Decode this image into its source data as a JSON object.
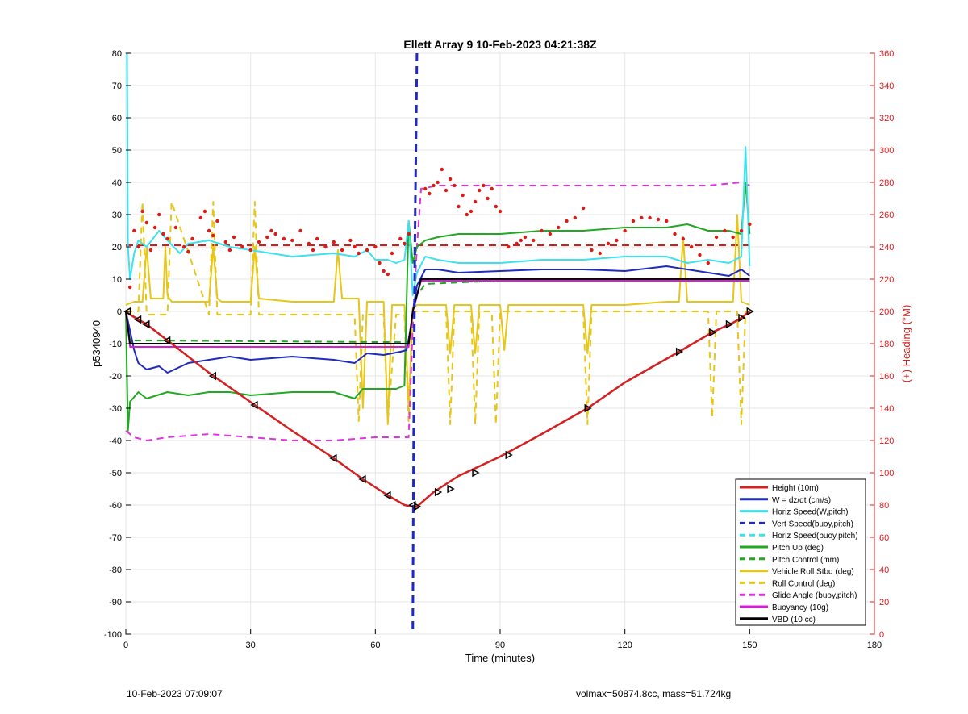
{
  "chart_data": {
    "type": "line",
    "title": "Ellett Array 9 10-Feb-2023 04:21:38Z",
    "xlabel": "Time (minutes)",
    "ylabel": "p5340940",
    "y2label": "(+) Heading (°M)",
    "xlim": [
      0,
      180
    ],
    "ylim": [
      -100,
      80
    ],
    "y2lim": [
      0,
      360
    ],
    "xticks": [
      0,
      30,
      60,
      90,
      120,
      150,
      180
    ],
    "yticks": [
      -100,
      -90,
      -80,
      -70,
      -60,
      -50,
      -40,
      -30,
      -20,
      -10,
      0,
      10,
      20,
      30,
      40,
      50,
      60,
      70,
      80
    ],
    "y2ticks": [
      0,
      20,
      40,
      60,
      80,
      100,
      120,
      140,
      160,
      180,
      200,
      220,
      240,
      260,
      280,
      300,
      320,
      340,
      360
    ],
    "grid": true,
    "legend_position": "bottom-right",
    "colors": {
      "height": "#d42020",
      "w": "#1f2bbd",
      "horiz": "#3ee2ee",
      "pitch": "#22a822",
      "roll": "#e6c619",
      "glide": "#e033e0",
      "buoyancy": "#d81dd8",
      "vbd": "#000000",
      "heading": "#dd1b14",
      "right_axis": "#d42020"
    },
    "series": [
      {
        "name": "Height (10m)",
        "style": "solid",
        "color": "#d42020",
        "x": [
          0,
          1,
          3,
          5,
          10,
          20,
          31,
          40,
          50,
          57,
          63,
          67,
          69,
          70,
          74,
          80,
          90,
          100,
          111,
          120,
          133,
          141,
          146,
          148,
          150
        ],
        "y": [
          0,
          -1,
          -2.5,
          -4,
          -9,
          -19,
          -29,
          -37,
          -45.5,
          -52,
          -57,
          -60,
          -60.5,
          -60.5,
          -56,
          -51,
          -45,
          -38,
          -30,
          -22,
          -12.5,
          -6.5,
          -3.5,
          -2,
          0
        ]
      },
      {
        "name": "W = dz/dt (cm/s)",
        "style": "solid",
        "color": "#1f2bbd",
        "x": [
          0,
          1,
          2,
          3,
          5,
          8,
          10,
          15,
          20,
          25,
          30,
          40,
          50,
          55,
          58,
          62,
          66,
          67.5,
          68.5,
          69,
          70,
          72,
          75,
          80,
          90,
          100,
          110,
          120,
          130,
          135,
          140,
          145,
          148,
          150
        ],
        "y": [
          0,
          -6,
          -12,
          -16,
          -18,
          -17,
          -19,
          -16,
          -15,
          -14,
          -15,
          -14,
          -15,
          -16,
          -13,
          -13.5,
          -12.5,
          -12,
          -5,
          0,
          8,
          13,
          13,
          12,
          12.5,
          13,
          13,
          12.5,
          14,
          13,
          12,
          11,
          13,
          11
        ]
      },
      {
        "name": "Horiz Speed(W,pitch)",
        "style": "solid",
        "color": "#3ee2ee",
        "x": [
          0.3,
          0.5,
          1,
          2,
          3,
          5,
          8,
          10,
          13,
          15,
          20,
          25,
          30,
          35,
          40,
          50,
          55,
          58,
          60,
          63,
          65,
          67,
          68,
          69,
          70,
          72,
          75,
          80,
          90,
          100,
          110,
          120,
          130,
          135,
          140,
          145,
          148,
          149,
          150
        ],
        "y": [
          80,
          20,
          10,
          18,
          22,
          20,
          25,
          22,
          18,
          21,
          22,
          20,
          19,
          18,
          17,
          18,
          17,
          19,
          16,
          16,
          15,
          16,
          28,
          5,
          12,
          17,
          16,
          15,
          15,
          16,
          16,
          17,
          17,
          15,
          16,
          15,
          17,
          51,
          14
        ]
      },
      {
        "name": "Vert Speed(buoy,pitch)",
        "style": "dashed",
        "color": "#1f2bbd",
        "x": [
          70,
          69.5,
          69.2,
          69
        ],
        "y": [
          80,
          20,
          -40,
          -100
        ]
      },
      {
        "name": "Horiz Speed(buoy,pitch)",
        "style": "dashed",
        "color": "#3ee2ee",
        "x": [],
        "y": []
      },
      {
        "name": "Pitch Up (deg)",
        "style": "solid",
        "color": "#22a822",
        "x": [
          0,
          0.5,
          1,
          3,
          5,
          10,
          15,
          20,
          25,
          30,
          40,
          50,
          55,
          57,
          60,
          65,
          67,
          68,
          69,
          70,
          72,
          75,
          80,
          90,
          100,
          110,
          120,
          130,
          135,
          140,
          145,
          148,
          149,
          150
        ],
        "y": [
          0,
          -37,
          -28,
          -25,
          -27,
          -25,
          -26,
          -25,
          -25,
          -26,
          -25,
          -25,
          -27,
          -24,
          -24,
          -24,
          -23,
          28,
          15,
          20,
          22,
          23,
          24,
          24,
          25,
          25,
          26,
          26,
          27,
          25,
          25,
          24,
          40,
          24
        ]
      },
      {
        "name": "Pitch Control (mm)",
        "style": "dashed",
        "color": "#22a822",
        "x": [
          0,
          1,
          5,
          60,
          68,
          69,
          70,
          72,
          90,
          150
        ],
        "y": [
          0,
          -9,
          -9,
          -9.5,
          -9.5,
          0,
          5,
          8.5,
          9.5,
          10
        ]
      },
      {
        "name": "Vehicle Roll Stbd (deg)",
        "style": "solid",
        "color": "#e6c619",
        "x": [
          0,
          2,
          4,
          5,
          6,
          9,
          9.5,
          10,
          11,
          20,
          21,
          22,
          23,
          30,
          31,
          32,
          40,
          50,
          51,
          52,
          56,
          57,
          58,
          62,
          63,
          64,
          67,
          68,
          69,
          70,
          75,
          77,
          78,
          79,
          83,
          84,
          85,
          90,
          91,
          92,
          100,
          110,
          111,
          112,
          120,
          130,
          133,
          134,
          135,
          146,
          147,
          148,
          150
        ],
        "y": [
          2,
          3,
          3,
          20,
          4,
          4,
          20,
          5,
          3,
          3,
          20,
          4,
          3,
          3,
          20,
          4,
          3,
          3,
          19,
          4,
          4,
          -30,
          3,
          3,
          -35,
          2,
          2,
          -30,
          1,
          2,
          2,
          2,
          -13,
          2,
          2,
          -13,
          2,
          2,
          -12,
          2,
          2,
          2,
          -13,
          2,
          2,
          3,
          3,
          23,
          3,
          3,
          30,
          3,
          2
        ]
      },
      {
        "name": "Roll Control (deg)",
        "style": "dashed",
        "color": "#e6c619",
        "x": [
          0,
          3,
          4,
          5,
          10,
          11,
          20,
          21,
          22,
          30,
          31,
          32,
          55,
          56,
          57,
          62,
          63,
          65,
          67,
          68,
          69,
          75,
          77,
          78,
          79,
          83,
          84,
          85,
          88,
          89,
          90,
          110,
          111,
          112,
          140,
          141,
          142,
          147,
          148,
          149,
          150
        ],
        "y": [
          0,
          0,
          34,
          -1,
          -1,
          34,
          -1,
          34,
          -1,
          -1,
          34,
          -1,
          -1,
          -34,
          -1,
          -1,
          -34,
          -1,
          -1,
          -34,
          0,
          0,
          0,
          -35,
          0,
          0,
          -35,
          0,
          0,
          -35,
          0,
          0,
          -35,
          0,
          0,
          -33,
          0,
          0,
          -35,
          0,
          0
        ]
      },
      {
        "name": "Glide Angle (buoy,pitch)",
        "style": "dashed",
        "color": "#e033e0",
        "x": [
          0,
          2,
          5,
          10,
          20,
          30,
          40,
          50,
          60,
          67,
          68,
          69,
          70,
          71,
          75,
          80,
          90,
          100,
          110,
          120,
          130,
          140,
          148,
          150
        ],
        "y": [
          -37,
          -39,
          -40,
          -39,
          -38,
          -39,
          -40,
          -40,
          -39,
          -39,
          -39,
          -5,
          20,
          38,
          39,
          39,
          39,
          39,
          39,
          39,
          39,
          39,
          40,
          39
        ]
      },
      {
        "name": "Buoyancy (10g)",
        "style": "solid",
        "color": "#d81dd8",
        "x": [
          0,
          1,
          68,
          69,
          71,
          150
        ],
        "y": [
          0,
          -11,
          -11,
          0,
          9.5,
          9.5
        ]
      },
      {
        "name": "VBD (10 cc)",
        "style": "solid",
        "color": "#000000",
        "x": [
          0,
          1,
          68,
          69,
          71,
          150
        ],
        "y": [
          0,
          -10,
          -10,
          0,
          10,
          10
        ]
      }
    ],
    "height_markers": {
      "x": [
        0.5,
        3,
        5,
        10,
        21,
        31,
        50,
        57,
        63,
        69,
        70,
        75,
        78,
        84,
        92,
        111,
        133,
        141,
        145,
        148,
        150
      ],
      "y": [
        0,
        -2.5,
        -4,
        -9,
        -20,
        -29,
        -45.5,
        -52,
        -57,
        -60,
        -60.5,
        -56,
        -55,
        -50,
        -44.5,
        -30,
        -12.5,
        -6.5,
        -4,
        -2,
        0
      ]
    },
    "heading_reference": {
      "heading": 241,
      "x_range": [
        0,
        150
      ]
    },
    "heading_points": {
      "x": [
        1,
        2,
        3,
        4,
        5,
        6,
        7,
        8,
        9,
        10,
        12,
        14,
        15,
        16,
        18,
        19,
        20,
        21,
        22,
        24,
        25,
        26,
        28,
        30,
        32,
        34,
        35,
        36,
        38,
        40,
        42,
        44,
        45,
        46,
        48,
        50,
        52,
        54,
        55,
        56,
        58,
        60,
        61,
        62,
        63,
        64,
        66,
        67,
        68,
        72,
        73,
        74,
        75,
        76,
        77,
        78,
        79,
        80,
        81,
        82,
        83,
        84,
        85,
        86,
        87,
        88,
        89,
        90,
        92,
        94,
        95,
        96,
        98,
        100,
        102,
        104,
        106,
        108,
        110,
        112,
        114,
        116,
        118,
        120,
        122,
        124,
        126,
        128,
        130,
        132,
        134,
        136,
        138,
        140,
        142,
        144,
        146,
        148,
        150
      ],
      "y": [
        215,
        250,
        240,
        262,
        255,
        238,
        252,
        260,
        248,
        245,
        252,
        240,
        237,
        245,
        258,
        262,
        250,
        247,
        256,
        243,
        238,
        246,
        240,
        238,
        243,
        246,
        250,
        248,
        245,
        244,
        250,
        242,
        238,
        245,
        240,
        243,
        238,
        244,
        240,
        236,
        238,
        240,
        230,
        225,
        223,
        236,
        245,
        242,
        248,
        276,
        273,
        278,
        280,
        288,
        275,
        282,
        278,
        265,
        272,
        260,
        262,
        268,
        275,
        278,
        270,
        276,
        265,
        262,
        240,
        242,
        244,
        246,
        244,
        250,
        248,
        252,
        256,
        258,
        264,
        238,
        236,
        242,
        244,
        250,
        256,
        258,
        258,
        257,
        256,
        248,
        245,
        240,
        235,
        230,
        246,
        250,
        246,
        250,
        254
      ]
    }
  },
  "footer": {
    "left": "10-Feb-2023 07:09:07",
    "right": "volmax=50874.8cc, mass=51.724kg"
  }
}
